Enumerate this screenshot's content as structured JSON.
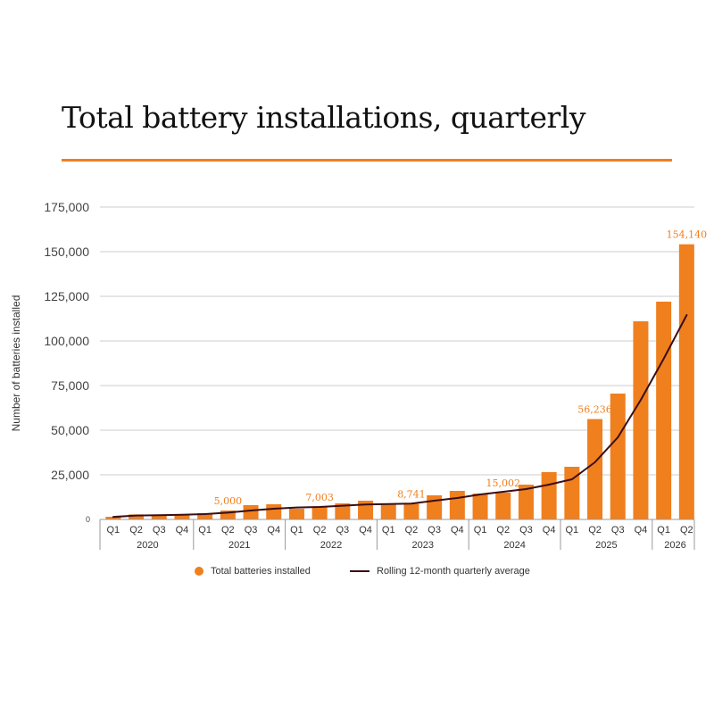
{
  "title": "Total battery installations, quarterly",
  "colors": {
    "bar": "#F07F1E",
    "line": "#3A0E14",
    "accent": "#F07F1E",
    "grid": "#cccccc",
    "text": "#333333"
  },
  "legend": {
    "bars_label": "Total batteries installed",
    "line_label": "Rolling 12-month quarterly average"
  },
  "chart_data": {
    "type": "bar",
    "ylabel": "Number of batteries installed",
    "ylim": [
      0,
      175000
    ],
    "yticks": [
      0,
      25000,
      50000,
      75000,
      100000,
      125000,
      150000,
      175000
    ],
    "ytick_labels": [
      "0",
      "25,000",
      "50,000",
      "75,000",
      "100,000",
      "125,000",
      "150,000",
      "175,000"
    ],
    "grid": true,
    "legend_position": "bottom",
    "categories": [
      "Q1",
      "Q2",
      "Q3",
      "Q4",
      "Q1",
      "Q2",
      "Q3",
      "Q4",
      "Q1",
      "Q2",
      "Q3",
      "Q4",
      "Q1",
      "Q2",
      "Q3",
      "Q4",
      "Q1",
      "Q2",
      "Q3",
      "Q4",
      "Q1",
      "Q2",
      "Q3",
      "Q4",
      "Q1",
      "Q2"
    ],
    "years": [
      {
        "label": "2020",
        "count": 4
      },
      {
        "label": "2021",
        "count": 4
      },
      {
        "label": "2022",
        "count": 4
      },
      {
        "label": "2023",
        "count": 4
      },
      {
        "label": "2024",
        "count": 4
      },
      {
        "label": "2025",
        "count": 4
      },
      {
        "label": "2026",
        "count": 2
      }
    ],
    "series": [
      {
        "name": "Total batteries installed",
        "type": "bar",
        "values": [
          1500,
          2800,
          2600,
          3000,
          3500,
          5000,
          8000,
          8500,
          6000,
          7003,
          9000,
          10500,
          8500,
          8741,
          13500,
          16000,
          14500,
          15002,
          19500,
          26500,
          29500,
          56236,
          70500,
          111000,
          122000,
          154140
        ]
      },
      {
        "name": "Rolling 12-month quarterly average",
        "type": "line",
        "values": [
          1400,
          2200,
          2400,
          2600,
          3000,
          3800,
          5000,
          6000,
          6700,
          7000,
          7700,
          8400,
          8600,
          8900,
          10500,
          12000,
          14000,
          15500,
          17000,
          19500,
          22500,
          32000,
          46000,
          67000,
          90000,
          114500
        ]
      }
    ],
    "data_labels": [
      {
        "index": 5,
        "text": "5,000"
      },
      {
        "index": 9,
        "text": "7,003"
      },
      {
        "index": 13,
        "text": "8,741"
      },
      {
        "index": 17,
        "text": "15,002"
      },
      {
        "index": 21,
        "text": "56,236"
      },
      {
        "index": 25,
        "text": "154,140"
      }
    ]
  }
}
